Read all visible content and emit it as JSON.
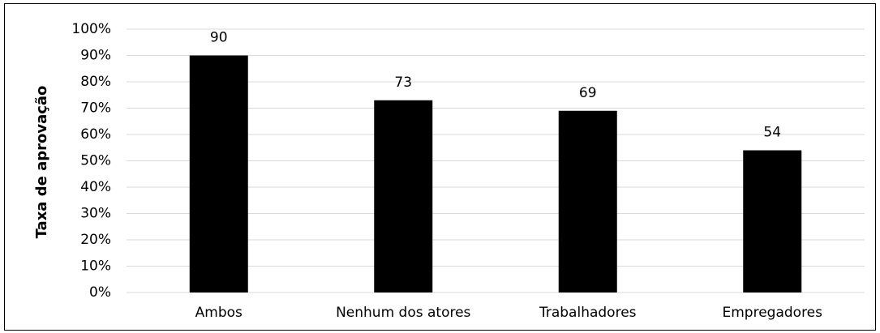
{
  "chart_data": {
    "type": "bar",
    "y_label": "Taxa de aprovação",
    "categories": [
      "Ambos",
      "Nenhum dos atores",
      "Trabalhadores",
      "Empregadores"
    ],
    "values": [
      90,
      73,
      69,
      54
    ],
    "color": "#000000",
    "ylim": [
      0,
      100
    ],
    "yticks": [
      {
        "value": 0,
        "label": "0%"
      },
      {
        "value": 10,
        "label": "10%"
      },
      {
        "value": 20,
        "label": "20%"
      },
      {
        "value": 30,
        "label": "30%"
      },
      {
        "value": 40,
        "label": "40%"
      },
      {
        "value": 50,
        "label": "50%"
      },
      {
        "value": 60,
        "label": "60%"
      },
      {
        "value": 70,
        "label": "70%"
      },
      {
        "value": 80,
        "label": "80%"
      },
      {
        "value": 90,
        "label": "90%"
      },
      {
        "value": 100,
        "label": "100%"
      }
    ],
    "grid": true
  }
}
